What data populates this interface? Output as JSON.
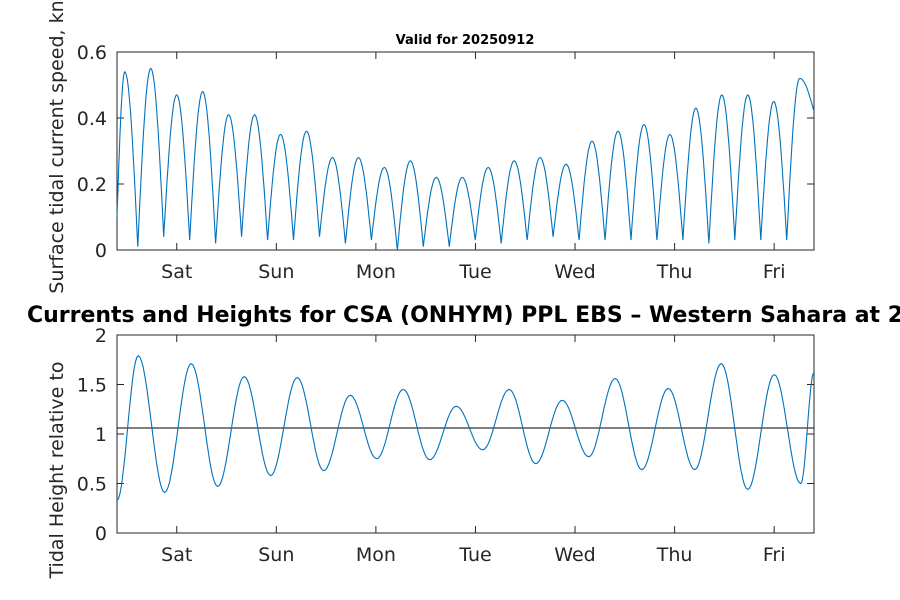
{
  "figure": {
    "main_title": "Currents and Heights for CSA (ONHYM) PPL EBS  – Western Sahara at 2"
  },
  "chart_data": [
    {
      "type": "line",
      "title": "Valid for 20250912",
      "xlabel": "",
      "ylabel": "Surface tidal current speed, kn",
      "x_range_days": [
        0,
        7
      ],
      "ylim": [
        0,
        0.6
      ],
      "yticks": [
        0,
        0.2,
        0.4,
        0.6
      ],
      "ytick_labels": [
        "0",
        "0.2",
        "0.4",
        "0.6"
      ],
      "xtick_labels": [
        "Sat",
        "Sun",
        "Mon",
        "Tue",
        "Wed",
        "Thu",
        "Fri"
      ],
      "grid": false,
      "series": [
        {
          "color": "#0072BD",
          "peaks": [
            0.54,
            0.55,
            0.47,
            0.48,
            0.41,
            0.41,
            0.35,
            0.36,
            0.28,
            0.28,
            0.25,
            0.27,
            0.22,
            0.22,
            0.25,
            0.27,
            0.28,
            0.26,
            0.33,
            0.36,
            0.38,
            0.35,
            0.43,
            0.47,
            0.47,
            0.45,
            0.52
          ],
          "troughs": [
            0.01,
            0.04,
            0.03,
            0.02,
            0.04,
            0.03,
            0.03,
            0.04,
            0.02,
            0.03,
            0.0,
            0.01,
            0.01,
            0.03,
            0.02,
            0.03,
            0.04,
            0.03,
            0.03,
            0.03,
            0.03,
            0.03,
            0.02,
            0.03,
            0.03,
            0.03
          ]
        }
      ]
    },
    {
      "type": "line",
      "title": "",
      "xlabel": "",
      "ylabel": "Tidal Height relative to",
      "x_range_days": [
        0,
        7
      ],
      "ylim": [
        0,
        2
      ],
      "yticks": [
        0,
        0.5,
        1,
        1.5,
        2
      ],
      "ytick_labels": [
        "0",
        "0.5",
        "1",
        "1.5",
        "2"
      ],
      "xtick_labels": [
        "Sat",
        "Sun",
        "Mon",
        "Tue",
        "Wed",
        "Thu",
        "Fri"
      ],
      "grid": false,
      "reference_line": {
        "y": 1.06,
        "color": "#000000"
      },
      "series": [
        {
          "color": "#0072BD",
          "start": 0.33,
          "highs": [
            1.79,
            1.71,
            1.58,
            1.57,
            1.39,
            1.45,
            1.28,
            1.45,
            1.34,
            1.56,
            1.46,
            1.71,
            1.6
          ],
          "lows": [
            0.41,
            0.47,
            0.58,
            0.63,
            0.75,
            0.74,
            0.84,
            0.7,
            0.77,
            0.64,
            0.64,
            0.44,
            0.5
          ],
          "end": 1.62
        }
      ]
    }
  ]
}
